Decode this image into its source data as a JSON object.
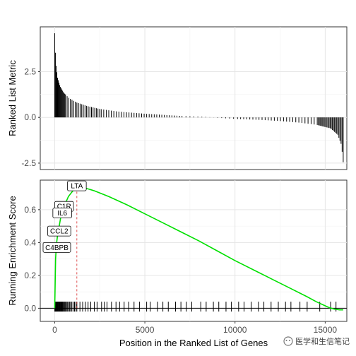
{
  "chart_data": [
    {
      "type": "bar",
      "panel": "top",
      "ylabel": "Ranked List Metric",
      "xlim": [
        -800,
        16200
      ],
      "ylim": [
        -2.85,
        4.95
      ],
      "yticks": [
        2.5,
        0.0,
        -2.5
      ],
      "ytick_labels": [
        "2.5",
        "0.0",
        "-2.5"
      ],
      "grid": true,
      "curve": [
        [
          0,
          4.6
        ],
        [
          60,
          3.0
        ],
        [
          150,
          2.2
        ],
        [
          300,
          1.7
        ],
        [
          500,
          1.35
        ],
        [
          800,
          1.05
        ],
        [
          1200,
          0.82
        ],
        [
          1800,
          0.62
        ],
        [
          2500,
          0.46
        ],
        [
          3500,
          0.32
        ],
        [
          5000,
          0.2
        ],
        [
          7000,
          0.08
        ],
        [
          8500,
          0.02
        ],
        [
          9000,
          -0.02
        ],
        [
          10000,
          -0.08
        ],
        [
          11500,
          -0.14
        ],
        [
          12500,
          -0.2
        ],
        [
          13500,
          -0.28
        ],
        [
          14500,
          -0.4
        ],
        [
          15300,
          -0.6
        ],
        [
          15700,
          -0.95
        ],
        [
          15900,
          -1.5
        ],
        [
          16000,
          -2.45
        ]
      ]
    },
    {
      "type": "line",
      "panel": "bottom",
      "xlabel": "Position in the Ranked List of Genes",
      "ylabel": "Running Enrichment Score",
      "xlim": [
        -800,
        16200
      ],
      "ylim": [
        -0.08,
        0.78
      ],
      "xticks": [
        0,
        5000,
        10000,
        15000
      ],
      "xtick_labels": [
        "0",
        "5000",
        "10000",
        "15000"
      ],
      "yticks": [
        0.0,
        0.2,
        0.4,
        0.6
      ],
      "ytick_labels": [
        "0.0",
        "0.2",
        "0.4",
        "0.6"
      ],
      "grid": true,
      "line_color": "#00e000",
      "peak_line_color": "#d62728",
      "peak_x": 1230,
      "series": [
        {
          "x": [
            0,
            15,
            30,
            50,
            80,
            120,
            180,
            250,
            330,
            420,
            520,
            640,
            760,
            900,
            1050,
            1150,
            1230,
            1600,
            2200,
            3000,
            4000,
            5000,
            6000,
            7000,
            8000,
            9000,
            10000,
            11000,
            12000,
            13000,
            14000,
            14500,
            14900,
            15200,
            15500,
            15800,
            16000
          ],
          "y": [
            0.0,
            0.08,
            0.18,
            0.3,
            0.36,
            0.41,
            0.46,
            0.5,
            0.55,
            0.58,
            0.62,
            0.65,
            0.68,
            0.7,
            0.72,
            0.73,
            0.745,
            0.735,
            0.715,
            0.68,
            0.63,
            0.575,
            0.52,
            0.465,
            0.41,
            0.35,
            0.29,
            0.235,
            0.18,
            0.125,
            0.07,
            0.04,
            0.02,
            0.005,
            -0.005,
            -0.01,
            -0.01
          ]
        }
      ],
      "hit_positions": [
        5,
        20,
        40,
        60,
        85,
        110,
        140,
        170,
        200,
        230,
        260,
        290,
        320,
        350,
        380,
        410,
        440,
        480,
        520,
        560,
        600,
        650,
        700,
        760,
        820,
        880,
        950,
        1020,
        1100,
        1180,
        1230,
        1400,
        1550,
        1700,
        1850,
        2000,
        2200,
        2350,
        2600,
        2750,
        2900,
        3150,
        3400,
        3600,
        3850,
        4100,
        4400,
        4700,
        5100,
        5300,
        5700,
        6000,
        6300,
        6700,
        7000,
        7300,
        7600,
        8100,
        8400,
        8800,
        9100,
        9500,
        9800,
        10200,
        10500,
        10900,
        11300,
        11600,
        12000,
        12400,
        12800,
        13100,
        13600,
        14000,
        14700,
        15300,
        15600
      ],
      "annotations": [
        {
          "text": "LTA",
          "x": 1230,
          "y": 0.745
        },
        {
          "text": "C1R",
          "x": 520,
          "y": 0.62
        },
        {
          "text": "IL6",
          "x": 420,
          "y": 0.58
        },
        {
          "text": "CCL2",
          "x": 250,
          "y": 0.47
        },
        {
          "text": "C4BPB",
          "x": 120,
          "y": 0.37
        }
      ]
    }
  ],
  "watermark": {
    "text": "医学和生信笔记"
  }
}
